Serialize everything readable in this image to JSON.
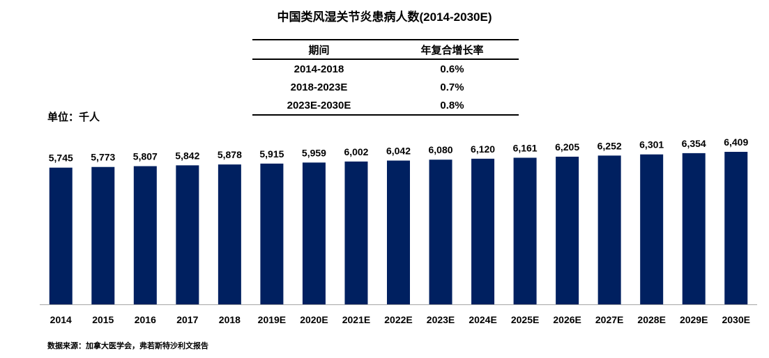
{
  "title": "中国类风湿关节炎患病人数(2014-2030E)",
  "unit_label": "单位：千人",
  "source": "数据来源：加拿大医学会，弗若斯特沙利文报告",
  "cagr_table": {
    "headers": [
      "期间",
      "年复合增长率"
    ],
    "rows": [
      {
        "period": "2014-2018",
        "cagr": "0.6%"
      },
      {
        "period": "2018-2023E",
        "cagr": "0.7%"
      },
      {
        "period": "2023E-2030E",
        "cagr": "0.8%"
      }
    ]
  },
  "colors": {
    "bar": "#002060"
  },
  "chart_data": {
    "type": "bar",
    "title": "中国类风湿关节炎患病人数(2014-2030E)",
    "ylabel": "单位：千人",
    "categories": [
      "2014",
      "2015",
      "2016",
      "2017",
      "2018",
      "2019E",
      "2020E",
      "2021E",
      "2022E",
      "2023E",
      "2024E",
      "2025E",
      "2026E",
      "2027E",
      "2028E",
      "2029E",
      "2030E"
    ],
    "values": [
      5745,
      5773,
      5807,
      5842,
      5878,
      5915,
      5959,
      6002,
      6042,
      6080,
      6120,
      6161,
      6205,
      6252,
      6301,
      6354,
      6409
    ],
    "value_labels": [
      "5,745",
      "5,773",
      "5,807",
      "5,842",
      "5,878",
      "5,915",
      "5,959",
      "6,002",
      "6,042",
      "6,080",
      "6,120",
      "6,161",
      "6,205",
      "6,252",
      "6,301",
      "6,354",
      "6,409"
    ],
    "ylim": [
      0,
      6409
    ],
    "grid": false,
    "legend": "none"
  }
}
